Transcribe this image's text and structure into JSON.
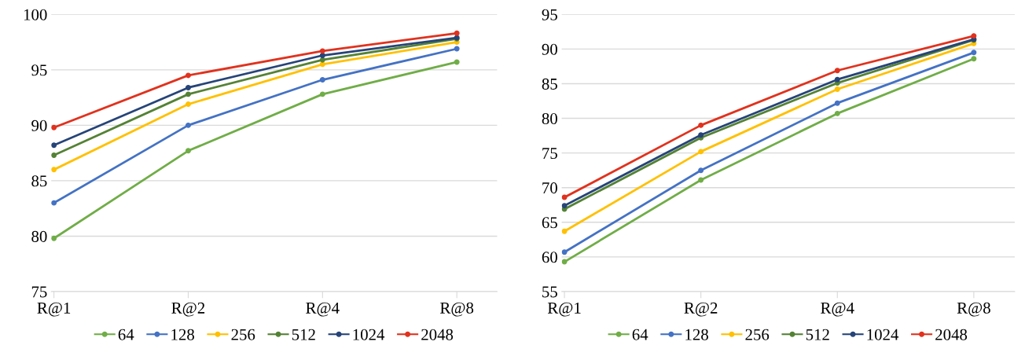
{
  "chart_data": [
    {
      "type": "line",
      "categories": [
        "R@1",
        "R@2",
        "R@4",
        "R@8"
      ],
      "ylim": [
        75,
        100
      ],
      "yticks": [
        75,
        80,
        85,
        90,
        95,
        100
      ],
      "grid": "y",
      "legend": "bottom",
      "marker": "circle",
      "line_style": "solid",
      "series": [
        {
          "name": "64",
          "color": "#70ad47",
          "values": [
            79.8,
            87.7,
            92.8,
            95.7
          ]
        },
        {
          "name": "128",
          "color": "#4472c4",
          "values": [
            83.0,
            90.0,
            94.1,
            96.9
          ]
        },
        {
          "name": "256",
          "color": "#ffc000",
          "values": [
            86.0,
            91.9,
            95.5,
            97.5
          ]
        },
        {
          "name": "512",
          "color": "#548235",
          "values": [
            87.3,
            92.8,
            95.9,
            97.8
          ]
        },
        {
          "name": "1024",
          "color": "#264478",
          "values": [
            88.2,
            93.4,
            96.3,
            97.9
          ]
        },
        {
          "name": "2048",
          "color": "#e0321e",
          "values": [
            89.8,
            94.5,
            96.7,
            98.3
          ]
        }
      ]
    },
    {
      "type": "line",
      "categories": [
        "R@1",
        "R@2",
        "R@4",
        "R@8"
      ],
      "ylim": [
        55,
        95
      ],
      "yticks": [
        55,
        60,
        65,
        70,
        75,
        80,
        85,
        90,
        95
      ],
      "grid": "y",
      "legend": "bottom",
      "marker": "circle",
      "line_style": "solid",
      "series": [
        {
          "name": "64",
          "color": "#70ad47",
          "values": [
            59.3,
            71.1,
            80.7,
            88.6
          ]
        },
        {
          "name": "128",
          "color": "#4472c4",
          "values": [
            60.7,
            72.5,
            82.2,
            89.5
          ]
        },
        {
          "name": "256",
          "color": "#ffc000",
          "values": [
            63.7,
            75.2,
            84.2,
            90.8
          ]
        },
        {
          "name": "512",
          "color": "#548235",
          "values": [
            66.9,
            77.2,
            85.1,
            91.3
          ]
        },
        {
          "name": "1024",
          "color": "#264478",
          "values": [
            67.4,
            77.6,
            85.6,
            91.4
          ]
        },
        {
          "name": "2048",
          "color": "#e0321e",
          "values": [
            68.6,
            79.0,
            86.9,
            91.9
          ]
        }
      ]
    }
  ]
}
